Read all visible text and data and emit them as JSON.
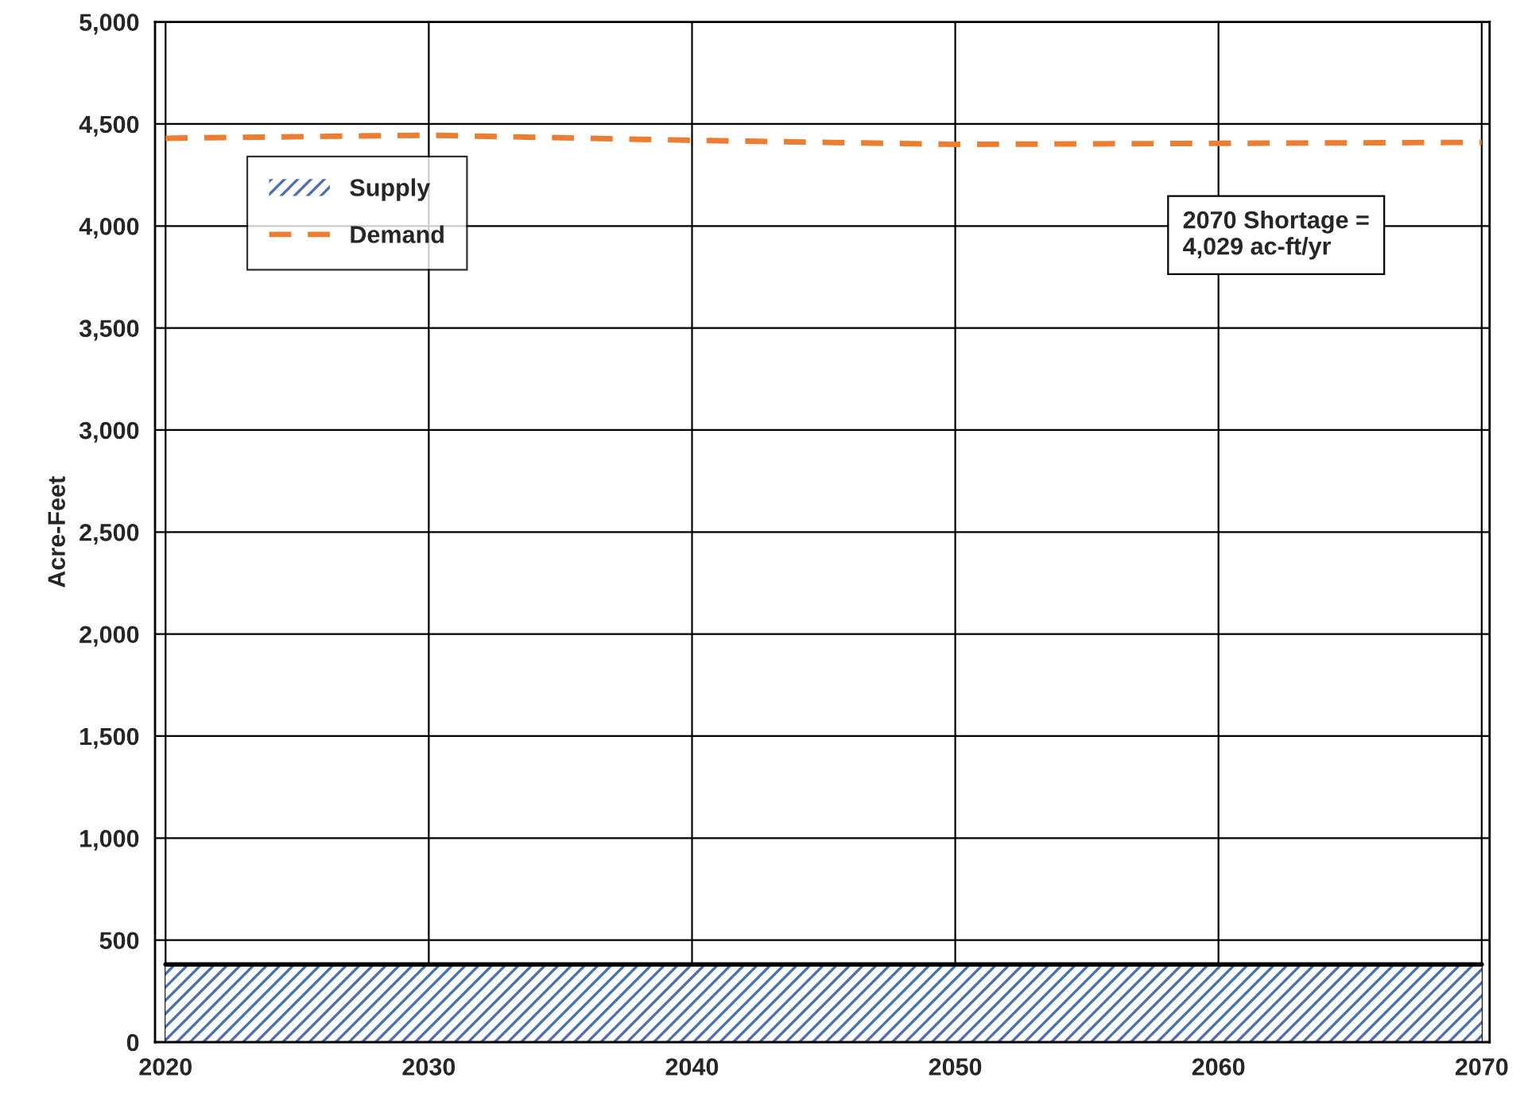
{
  "chart_data": {
    "type": "line",
    "ylabel": "Acre-Feet",
    "x": [
      2020,
      2030,
      2040,
      2050,
      2060,
      2070
    ],
    "series": [
      {
        "name": "Supply",
        "type": "area",
        "color": "#4a6fb5",
        "values": [
          381,
          381,
          381,
          381,
          381,
          381
        ]
      },
      {
        "name": "Demand",
        "color": "#ed7d31",
        "line_style": "dashed",
        "values": [
          4430,
          4445,
          4420,
          4400,
          4405,
          4410
        ]
      }
    ],
    "xlim": [
      2019.6,
      2070.3
    ],
    "xticks": [
      2020,
      2030,
      2040,
      2050,
      2060,
      2070
    ],
    "ylim": [
      0,
      5000
    ],
    "yticks": [
      {
        "value": 0,
        "label": "0"
      },
      {
        "value": 500,
        "label": "500"
      },
      {
        "value": 1000,
        "label": "1,000"
      },
      {
        "value": 1500,
        "label": "1,500"
      },
      {
        "value": 2000,
        "label": "2,000"
      },
      {
        "value": 2500,
        "label": "2,500"
      },
      {
        "value": 3000,
        "label": "3,000"
      },
      {
        "value": 3500,
        "label": "3,500"
      },
      {
        "value": 4000,
        "label": "4,000"
      },
      {
        "value": 4500,
        "label": "4,500"
      },
      {
        "value": 5000,
        "label": "5,000"
      }
    ],
    "grid": true,
    "legend": "top left",
    "marker": "none",
    "annotations": [
      "2070 Shortage =\n4,029 ac-ft/yr"
    ]
  }
}
